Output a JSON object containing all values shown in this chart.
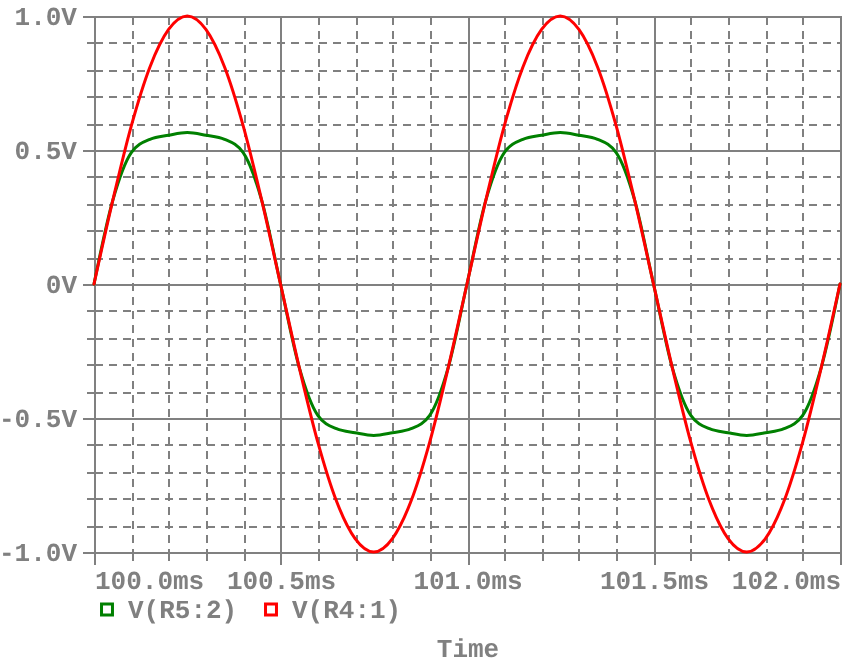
{
  "chart_data": {
    "type": "line",
    "xlabel": "Time",
    "x": [
      100,
      100.05,
      100.1,
      100.15,
      100.2,
      100.25,
      100.3,
      100.35,
      100.4,
      100.45,
      100.5,
      100.55,
      100.6,
      100.65,
      100.7,
      100.75,
      100.8,
      100.85,
      100.9,
      100.95,
      101,
      101.05,
      101.1,
      101.15,
      101.2,
      101.25,
      101.3,
      101.35,
      101.4,
      101.45,
      101.5,
      101.55,
      101.6,
      101.65,
      101.7,
      101.75,
      101.8,
      101.85,
      101.9,
      101.95,
      102
    ],
    "series": [
      {
        "name": "V(R5:2)",
        "color": "#008000",
        "values": [
          0,
          0.31,
          0.49,
          0.54,
          0.555,
          0.565,
          0.555,
          0.54,
          0.49,
          0.31,
          0,
          -0.31,
          -0.49,
          -0.54,
          -0.555,
          -0.565,
          -0.555,
          -0.54,
          -0.49,
          -0.31,
          0,
          0.31,
          0.49,
          0.54,
          0.555,
          0.565,
          0.555,
          0.54,
          0.49,
          0.31,
          0,
          -0.31,
          -0.49,
          -0.54,
          -0.555,
          -0.565,
          -0.555,
          -0.54,
          -0.49,
          -0.31,
          0
        ]
      },
      {
        "name": "V(R4:1)",
        "color": "#ff0000",
        "values": [
          0,
          0.31,
          0.59,
          0.81,
          0.95,
          1.0,
          0.95,
          0.81,
          0.59,
          0.31,
          0,
          -0.31,
          -0.59,
          -0.81,
          -0.95,
          -1.0,
          -0.95,
          -0.81,
          -0.59,
          -0.31,
          0,
          0.31,
          0.59,
          0.81,
          0.95,
          1.0,
          0.95,
          0.81,
          0.59,
          0.31,
          0,
          -0.31,
          -0.59,
          -0.81,
          -0.95,
          -1.0,
          -0.95,
          -0.81,
          -0.59,
          -0.31,
          0
        ]
      }
    ],
    "xlim": [
      100,
      102
    ],
    "xticks": [
      {
        "value": 100,
        "label": "100.0ms"
      },
      {
        "value": 100.1,
        "label": null
      },
      {
        "value": 100.2,
        "label": null
      },
      {
        "value": 100.3,
        "label": null
      },
      {
        "value": 100.4,
        "label": null
      },
      {
        "value": 100.5,
        "label": "100.5ms"
      },
      {
        "value": 100.6,
        "label": null
      },
      {
        "value": 100.7,
        "label": null
      },
      {
        "value": 100.8,
        "label": null
      },
      {
        "value": 100.9,
        "label": null
      },
      {
        "value": 101,
        "label": "101.0ms"
      },
      {
        "value": 101.1,
        "label": null
      },
      {
        "value": 101.2,
        "label": null
      },
      {
        "value": 101.3,
        "label": null
      },
      {
        "value": 101.4,
        "label": null
      },
      {
        "value": 101.5,
        "label": "101.5ms"
      },
      {
        "value": 101.6,
        "label": null
      },
      {
        "value": 101.7,
        "label": null
      },
      {
        "value": 101.8,
        "label": null
      },
      {
        "value": 101.9,
        "label": null
      },
      {
        "value": 102,
        "label": "102.0ms"
      }
    ],
    "ylim": [
      -1,
      1
    ],
    "yticks": [
      {
        "value": -1,
        "label": "-1.0V"
      },
      {
        "value": -0.9,
        "label": null
      },
      {
        "value": -0.8,
        "label": null
      },
      {
        "value": -0.7,
        "label": null
      },
      {
        "value": -0.6,
        "label": null
      },
      {
        "value": -0.5,
        "label": "-0.5V"
      },
      {
        "value": -0.4,
        "label": null
      },
      {
        "value": -0.3,
        "label": null
      },
      {
        "value": -0.2,
        "label": null
      },
      {
        "value": -0.1,
        "label": null
      },
      {
        "value": 0,
        "label": "0V"
      },
      {
        "value": 0.1,
        "label": null
      },
      {
        "value": 0.2,
        "label": null
      },
      {
        "value": 0.3,
        "label": null
      },
      {
        "value": 0.4,
        "label": null
      },
      {
        "value": 0.5,
        "label": "0.5V"
      },
      {
        "value": 0.6,
        "label": null
      },
      {
        "value": 0.7,
        "label": null
      },
      {
        "value": 0.8,
        "label": null
      },
      {
        "value": 0.9,
        "label": null
      },
      {
        "value": 1,
        "label": "1.0V"
      }
    ],
    "grid": true,
    "legend": "bottom"
  }
}
